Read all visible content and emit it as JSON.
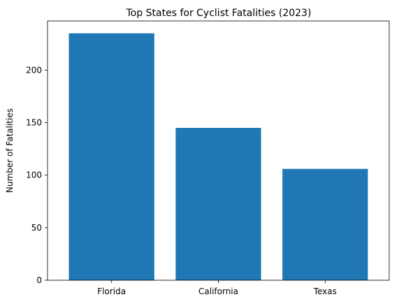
{
  "chart_data": {
    "type": "bar",
    "title": "Top States for Cyclist Fatalities (2023)",
    "xlabel": "",
    "ylabel": "Number of Fatalities",
    "categories": [
      "Florida",
      "California",
      "Texas"
    ],
    "values": [
      235,
      145,
      106
    ],
    "ylim": [
      0,
      246.75
    ],
    "yticks": [
      0,
      50,
      100,
      150,
      200
    ],
    "bar_color": "#1f77b4",
    "grid": false,
    "legend": "none"
  }
}
